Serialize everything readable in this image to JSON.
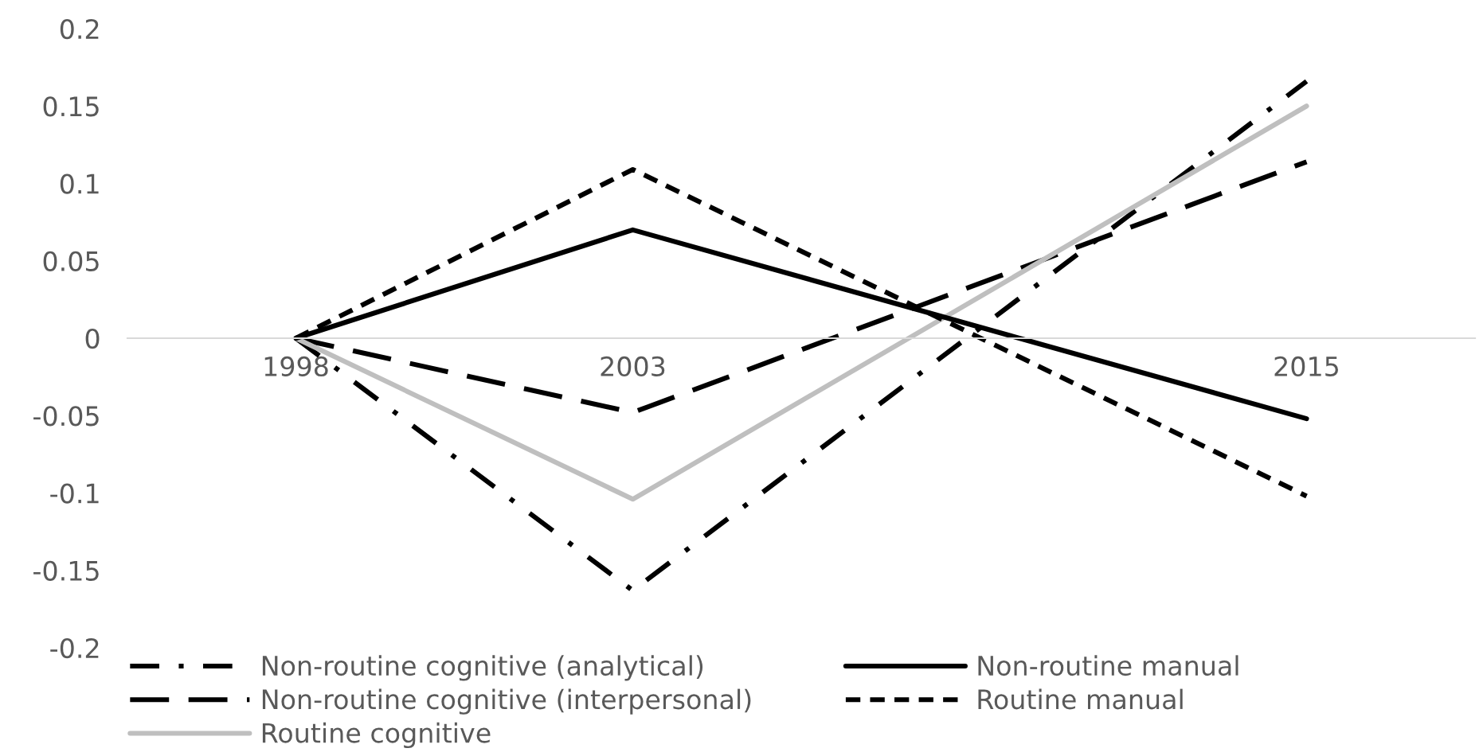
{
  "chart_data": {
    "type": "line",
    "categories": [
      "1998",
      "2003",
      null,
      "2015"
    ],
    "series": [
      {
        "name": "Non-routine cognitive (analytical)",
        "color": "#000000",
        "line_style": "dashdot",
        "values": [
          0,
          -0.163,
          null,
          0.166
        ]
      },
      {
        "name": "Non-routine cognitive (interpersonal)",
        "color": "#000000",
        "line_style": "longdash",
        "values": [
          0,
          -0.048,
          null,
          0.114
        ]
      },
      {
        "name": "Routine cognitive",
        "color": "#bfbfbf",
        "line_style": "solid",
        "values": [
          0,
          -0.104,
          null,
          0.15
        ]
      },
      {
        "name": "Non-routine manual",
        "color": "#000000",
        "line_style": "solid",
        "values": [
          0,
          0.07,
          null,
          -0.052
        ]
      },
      {
        "name": "Routine manual",
        "color": "#000000",
        "line_style": "dashed",
        "values": [
          0,
          0.109,
          null,
          -0.102
        ]
      }
    ],
    "ylim": [
      -0.2,
      0.2
    ],
    "yticks": [
      {
        "value": -0.2,
        "label": "-0.2"
      },
      {
        "value": -0.15,
        "label": "-0.15"
      },
      {
        "value": -0.1,
        "label": "-0.1"
      },
      {
        "value": -0.05,
        "label": "-0.05"
      },
      {
        "value": 0,
        "label": "0"
      },
      {
        "value": 0.05,
        "label": "0.05"
      },
      {
        "value": 0.1,
        "label": "0.1"
      },
      {
        "value": 0.15,
        "label": "0.15"
      },
      {
        "value": 0.2,
        "label": "0.2"
      }
    ],
    "grid": false,
    "legend": "bottom"
  }
}
